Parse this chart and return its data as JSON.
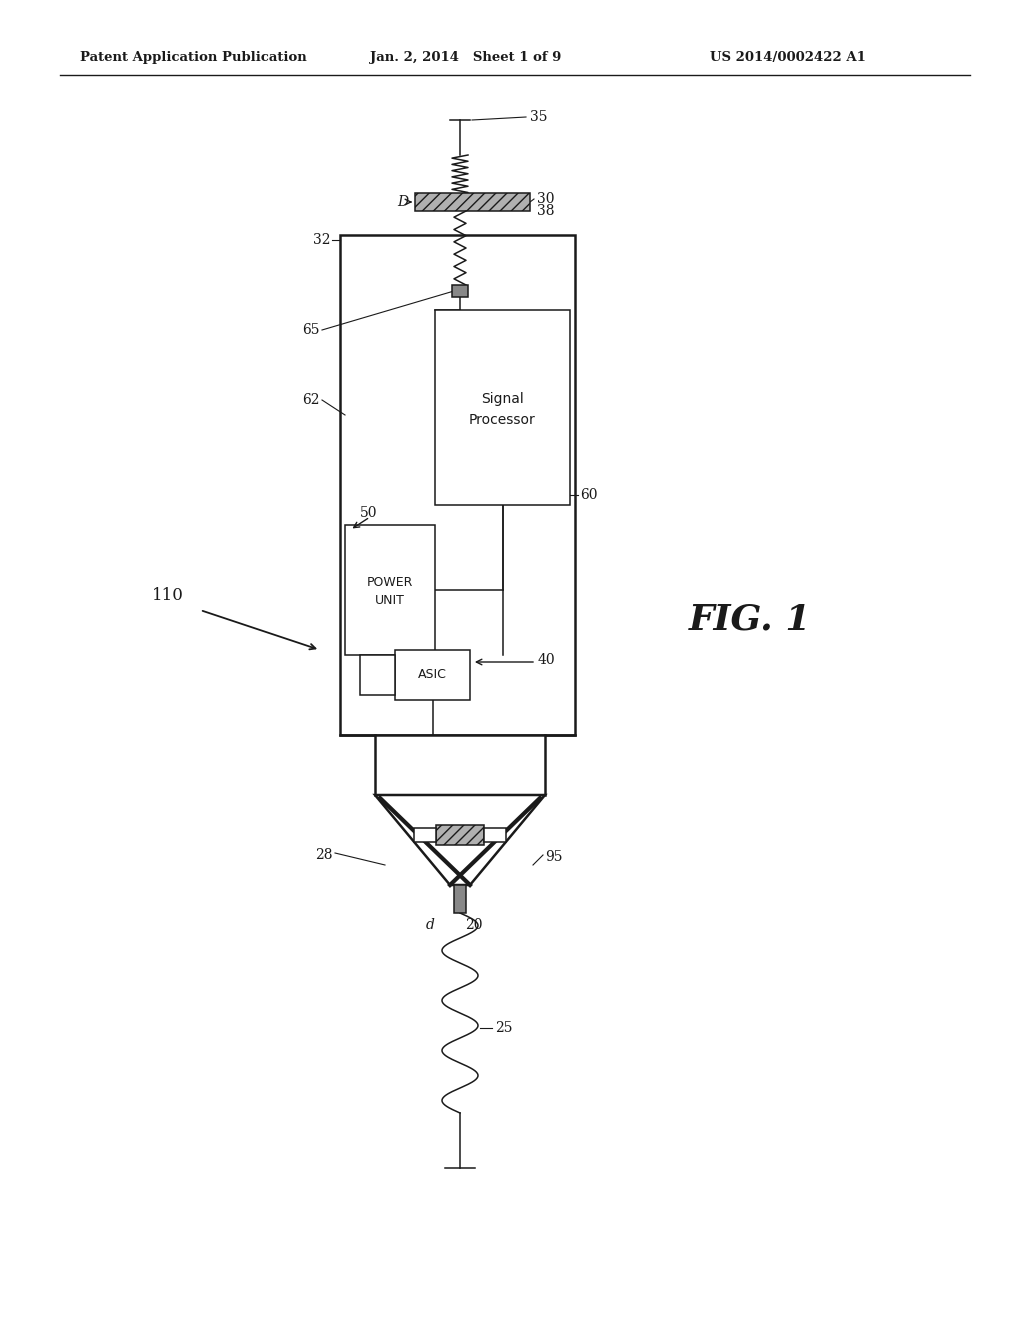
{
  "background_color": "#ffffff",
  "header_left": "Patent Application Publication",
  "header_center": "Jan. 2, 2014   Sheet 1 of 9",
  "header_right": "US 2014/0002422 A1",
  "fig_label": "FIG. 1",
  "color": "#1a1a1a",
  "lw_main": 1.8,
  "lw_thin": 1.1,
  "lw_thick": 3.0
}
